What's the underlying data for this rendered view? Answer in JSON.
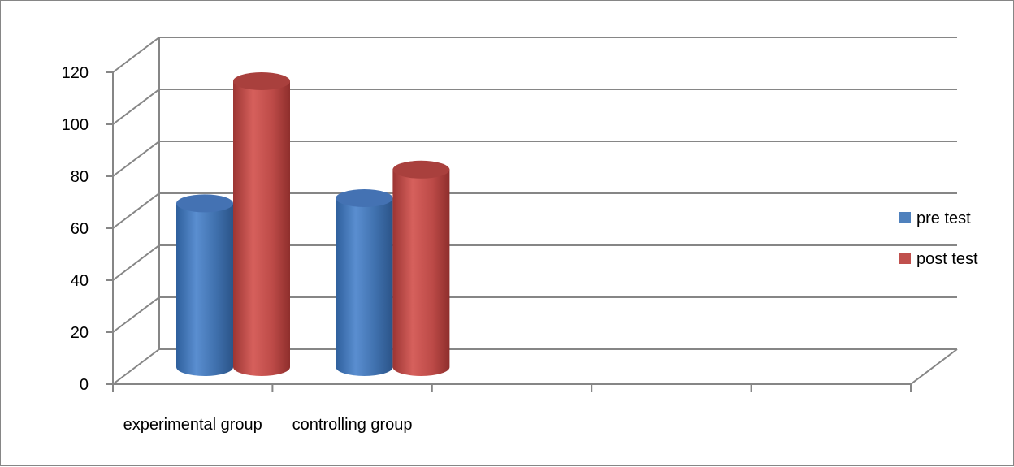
{
  "colors": {
    "frame": "#868686",
    "grid": "#868686",
    "pre_test": "#4f81bd",
    "post_test": "#c0504d"
  },
  "chart_data": {
    "type": "bar",
    "style": "3d-cylinder",
    "categories": [
      "experimental group",
      "controlling group",
      "",
      "",
      ""
    ],
    "series": [
      {
        "name": "pre test",
        "values": [
          63,
          65,
          null,
          null,
          null
        ]
      },
      {
        "name": "post test",
        "values": [
          110,
          76,
          null,
          null,
          null
        ]
      }
    ],
    "ylim": [
      0,
      120
    ],
    "yticks": [
      "0",
      "20",
      "40",
      "60",
      "80",
      "100",
      "120"
    ],
    "grid": true,
    "legend": "right"
  }
}
